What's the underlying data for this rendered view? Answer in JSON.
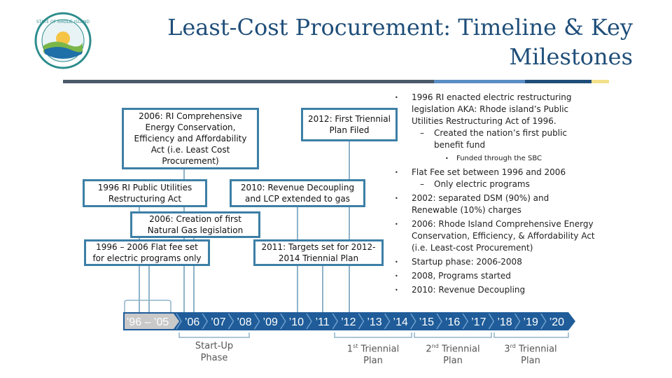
{
  "title": "Least-Cost Procurement: Timeline & Key Milestones",
  "logo": {
    "name": "state-of-rhode-island-seal",
    "text": "STATE OF RHODE ISLAND"
  },
  "colors": {
    "title": "#1f4e79",
    "box_border": "#3d7fa6",
    "timeline_bar": "#1f5c99",
    "highlight_segment": "#c9c9c9",
    "rule_dark": "#4a5a6a",
    "rule_blue": "#5b8ec4",
    "rule_navy": "#1f4e79",
    "rule_yellow": "#f2e08a"
  },
  "milestones": {
    "m2006_comprehensive": "2006: RI Comprehensive Energy Conservation, Efficiency and Affordability Act (i.e. Least Cost Procurement)",
    "m2012_triennial": "2012: First Triennial Plan Filed",
    "m1996_restructuring": "1996 RI Public Utilities Restructuring Act",
    "m2010_decoupling": "2010: Revenue Decoupling and LCP extended to gas",
    "m2006_gas": "2006: Creation of first Natural Gas legislation",
    "m1996_flatfee": "1996 – 2006 Flat fee set for electric programs only",
    "m2011_targets": "2011: Targets set for 2012-2014 Triennial Plan"
  },
  "bullets": [
    {
      "level": 1,
      "marker": "•",
      "text": "1996 RI enacted electric restructuring legislation AKA: Rhode island’s Public Utilities Restructuring Act of 1996."
    },
    {
      "level": 2,
      "marker": "–",
      "text": "Created the nation’s first public benefit fund"
    },
    {
      "level": 3,
      "marker": "•",
      "text": "Funded through the SBC"
    },
    {
      "level": 1,
      "marker": "•",
      "text": "Flat Fee set between 1996 and 2006"
    },
    {
      "level": 2,
      "marker": "–",
      "text": "Only electric programs"
    },
    {
      "level": 1,
      "marker": "•",
      "text": "2002: separated DSM (90%) and Renewable (10%) charges"
    },
    {
      "level": 1,
      "marker": "•",
      "text": "2006: Rhode Island Comprehensive Energy Conservation, Efficiency, & Affordability Act (i.e. Least-cost Procurement)"
    },
    {
      "level": 1,
      "marker": "•",
      "text": "Startup phase: 2006-2008"
    },
    {
      "level": 1,
      "marker": "•",
      "text": "2008, Programs started"
    },
    {
      "level": 1,
      "marker": "•",
      "text": "2010: Revenue Decoupling"
    }
  ],
  "timeline": {
    "segments": [
      "’96 – ’05",
      "’06",
      "’07",
      "’08",
      "’09",
      "’10",
      "’11",
      "’12",
      "’13",
      "’14",
      "’15",
      "’16",
      "’17",
      "’18",
      "’19",
      "’20"
    ]
  },
  "phases": {
    "startup_line1": "Start-Up",
    "startup_line2": "Phase",
    "first_num": "1",
    "first_sup": "st",
    "first_rest": " Triennial",
    "first_line2": "Plan",
    "second_num": "2",
    "second_sup": "nd",
    "second_rest": " Triennial",
    "second_line2": "Plan",
    "third_num": "3",
    "third_sup": "rd",
    "third_rest": " Triennial",
    "third_line2": "Plan"
  }
}
